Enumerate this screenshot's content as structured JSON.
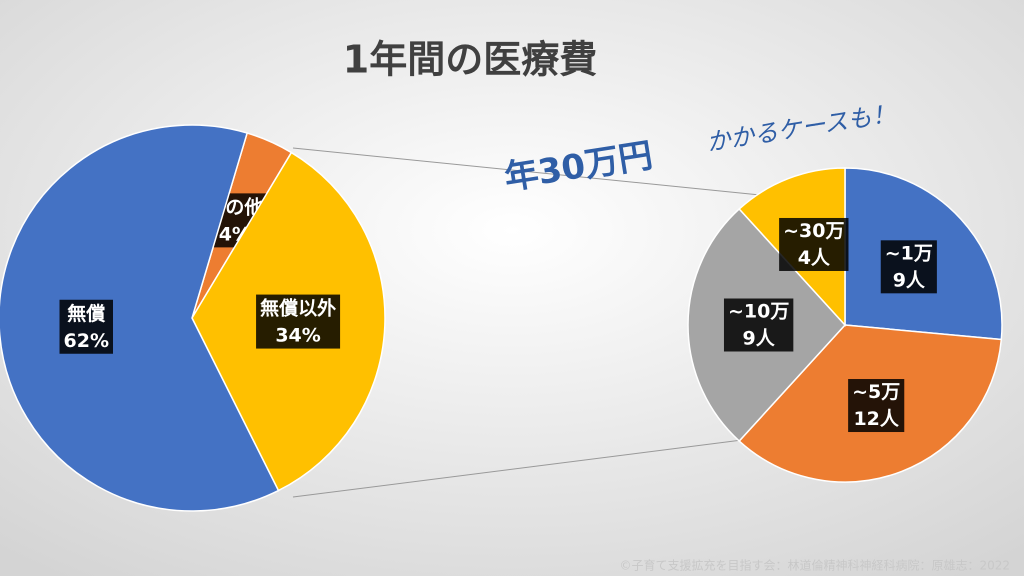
{
  "chart_data": [
    {
      "type": "pie",
      "title": "1年間の医療費",
      "categories": [
        "その他",
        "無償以外",
        "無償"
      ],
      "values": [
        4,
        34,
        62
      ],
      "value_labels": [
        "4%",
        "34%",
        "62%"
      ],
      "colors": [
        "#ed7d31",
        "#ffc000",
        "#4472c4"
      ]
    },
    {
      "type": "pie",
      "annotations": [
        "年30万円",
        "かかるケースも！"
      ],
      "categories": [
        "~1万",
        "~5万",
        "~10万",
        "~30万"
      ],
      "values": [
        9,
        12,
        9,
        4
      ],
      "value_labels": [
        "9人",
        "12人",
        "9人",
        "4人"
      ],
      "colors": [
        "#4472c4",
        "#ed7d31",
        "#a5a5a5",
        "#ffc000"
      ]
    }
  ],
  "footer": "©子育て支援拡充を目指す会：林道倫精神科神経科病院：原雄志：2022"
}
